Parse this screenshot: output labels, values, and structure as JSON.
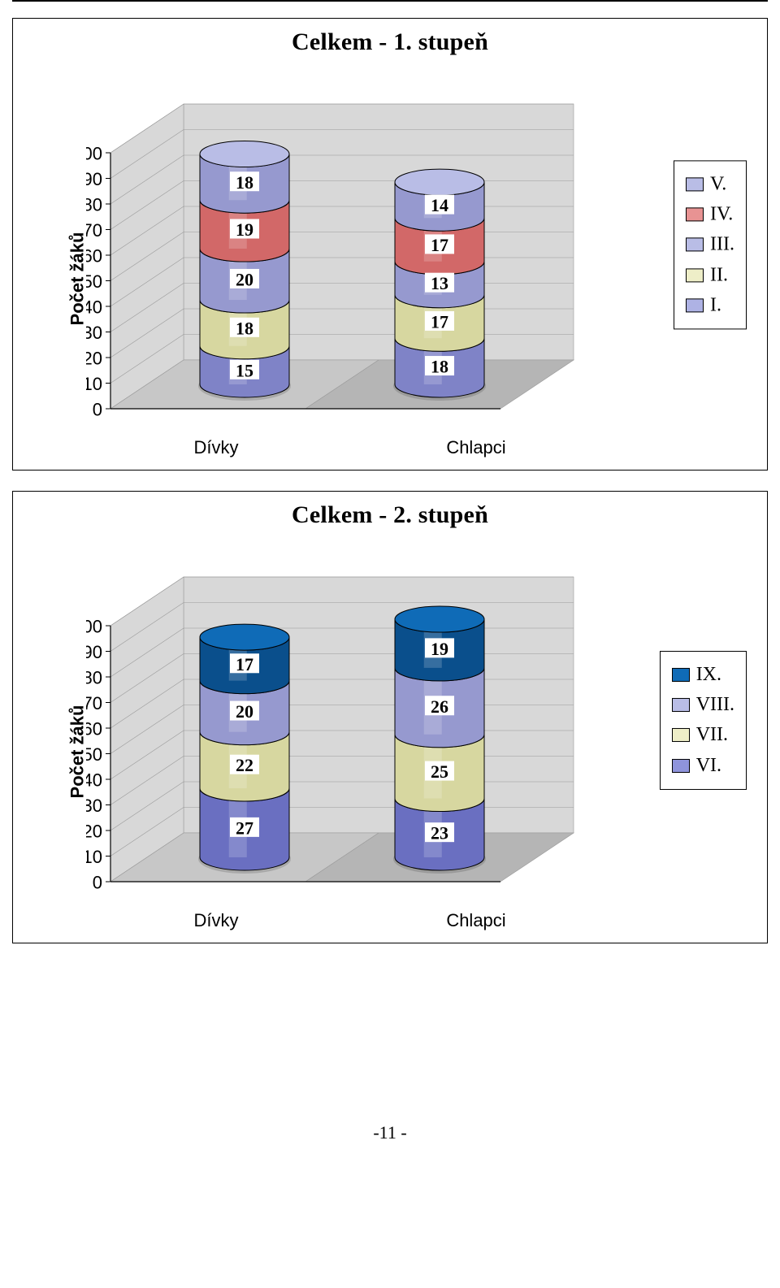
{
  "page": {
    "number_display": "-11 -"
  },
  "charts": [
    {
      "id": "chart1",
      "title": "Celkem - 1. stupeň",
      "y_axis_label": "Počet žáků",
      "ylim": [
        0,
        100
      ],
      "ytick_step": 10,
      "categories": [
        "Dívky",
        "Chlapci"
      ],
      "series": [
        {
          "name": "I.",
          "color_top": "#aeb2e4",
          "color_side": "#7f83c7",
          "values": [
            15,
            18
          ]
        },
        {
          "name": "II.",
          "color_top": "#eeeec8",
          "color_side": "#d7d7a0",
          "values": [
            18,
            17
          ]
        },
        {
          "name": "III.",
          "color_top": "#b9bde6",
          "color_side": "#9699cf",
          "values": [
            20,
            13
          ]
        },
        {
          "name": "IV.",
          "color_top": "#e89393",
          "color_side": "#d26868",
          "values": [
            19,
            17
          ]
        },
        {
          "name": "V.",
          "color_top": "#b9bde6",
          "color_side": "#9699cf",
          "values": [
            18,
            14
          ]
        }
      ],
      "legend_order": [
        "V.",
        "IV.",
        "III.",
        "II.",
        "I."
      ],
      "floor_color_light": "#c7c7c7",
      "floor_color_dark": "#b5b5b5",
      "wall_color": "#d8d8d8",
      "grid_color": "#9a9a9a",
      "outline_color": "#000000",
      "background": "#ffffff"
    },
    {
      "id": "chart2",
      "title": "Celkem - 2. stupeň",
      "y_axis_label": "Počet žáků",
      "ylim": [
        0,
        100
      ],
      "ytick_step": 10,
      "categories": [
        "Dívky",
        "Chlapci"
      ],
      "series": [
        {
          "name": "VI.",
          "color_top": "#8f94dc",
          "color_side": "#6a6fc1",
          "values": [
            27,
            23
          ]
        },
        {
          "name": "VII.",
          "color_top": "#eeeec8",
          "color_side": "#d7d7a0",
          "values": [
            22,
            25
          ]
        },
        {
          "name": "VIII.",
          "color_top": "#b9bde6",
          "color_side": "#9699cf",
          "values": [
            20,
            26
          ]
        },
        {
          "name": "IX.",
          "color_top": "#0f6bb7",
          "color_side": "#0a4f8c",
          "values": [
            17,
            19
          ]
        }
      ],
      "legend_order": [
        "IX.",
        "VIII.",
        "VII.",
        "VI."
      ],
      "floor_color_light": "#c7c7c7",
      "floor_color_dark": "#b5b5b5",
      "wall_color": "#d8d8d8",
      "grid_color": "#9a9a9a",
      "outline_color": "#000000",
      "background": "#ffffff"
    }
  ]
}
